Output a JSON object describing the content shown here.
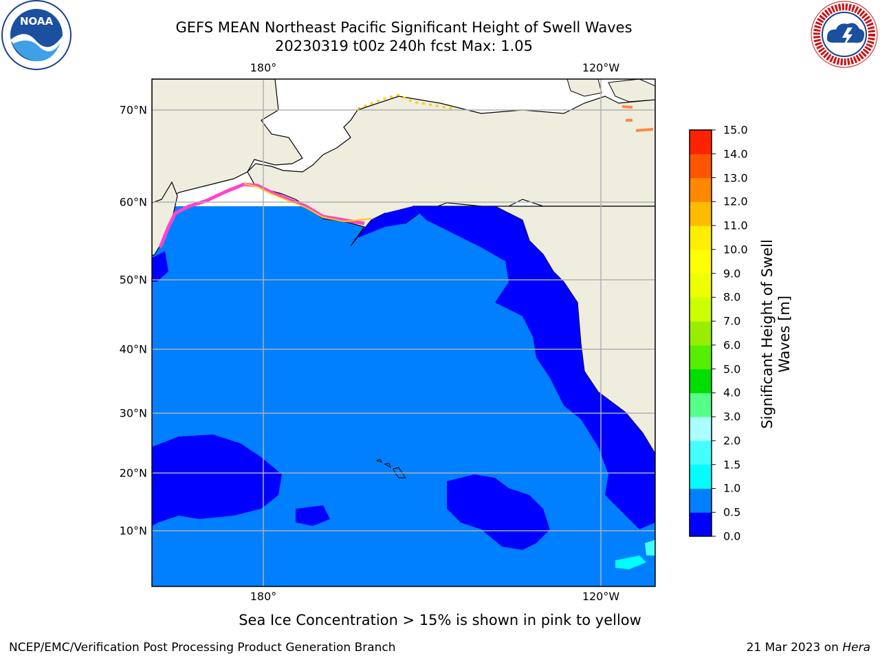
{
  "header": {
    "title_line1": "GEFS MEAN Northeast Pacific Significant Height of Swell Waves",
    "title_line2": "20230319 t00z 240h fcst   Max: 1.05"
  },
  "logos": {
    "left": {
      "text": "NOAA",
      "icon": "noaa-logo-icon"
    },
    "right": {
      "text": "NATIONAL WEATHER SERVICE",
      "icon": "nws-logo-icon"
    }
  },
  "map": {
    "lon_labels": [
      "180°",
      "120°W"
    ],
    "lat_labels": [
      "70°N",
      "60°N",
      "50°N",
      "40°N",
      "30°N",
      "20°N",
      "10°N"
    ],
    "colors": {
      "land": "#efedde",
      "ocean_light": "#0080ff",
      "ocean_dark": "#0000ff",
      "ice_pink": "#ff44cc",
      "ice_yellow": "#ffcc00",
      "grid": "#b0b0b0"
    }
  },
  "colorbar": {
    "label_line1": "Significant Height of Swell",
    "label_line2": "Waves [m]",
    "ticks": [
      "0.0",
      "0.5",
      "1.0",
      "1.5",
      "2.0",
      "3.0",
      "4.0",
      "5.0",
      "6.0",
      "7.0",
      "8.0",
      "9.0",
      "10.0",
      "11.0",
      "12.0",
      "13.0",
      "14.0",
      "15.0"
    ],
    "colors": [
      "#0000ff",
      "#0080ff",
      "#00ffff",
      "#44ffff",
      "#aaffff",
      "#55ff88",
      "#00dd00",
      "#55ee00",
      "#99ee00",
      "#ccff00",
      "#eeff00",
      "#ffff00",
      "#ffee00",
      "#ffbb00",
      "#ff8800",
      "#ff5500",
      "#ff2200",
      "#ff0000"
    ]
  },
  "footer": {
    "note": "Sea Ice Concentration > 15% is shown in pink to yellow",
    "left": "NCEP/EMC/Verification Post Processing Product Generation Branch",
    "right_date": "21 Mar 2023 on ",
    "right_machine": "Hera"
  }
}
